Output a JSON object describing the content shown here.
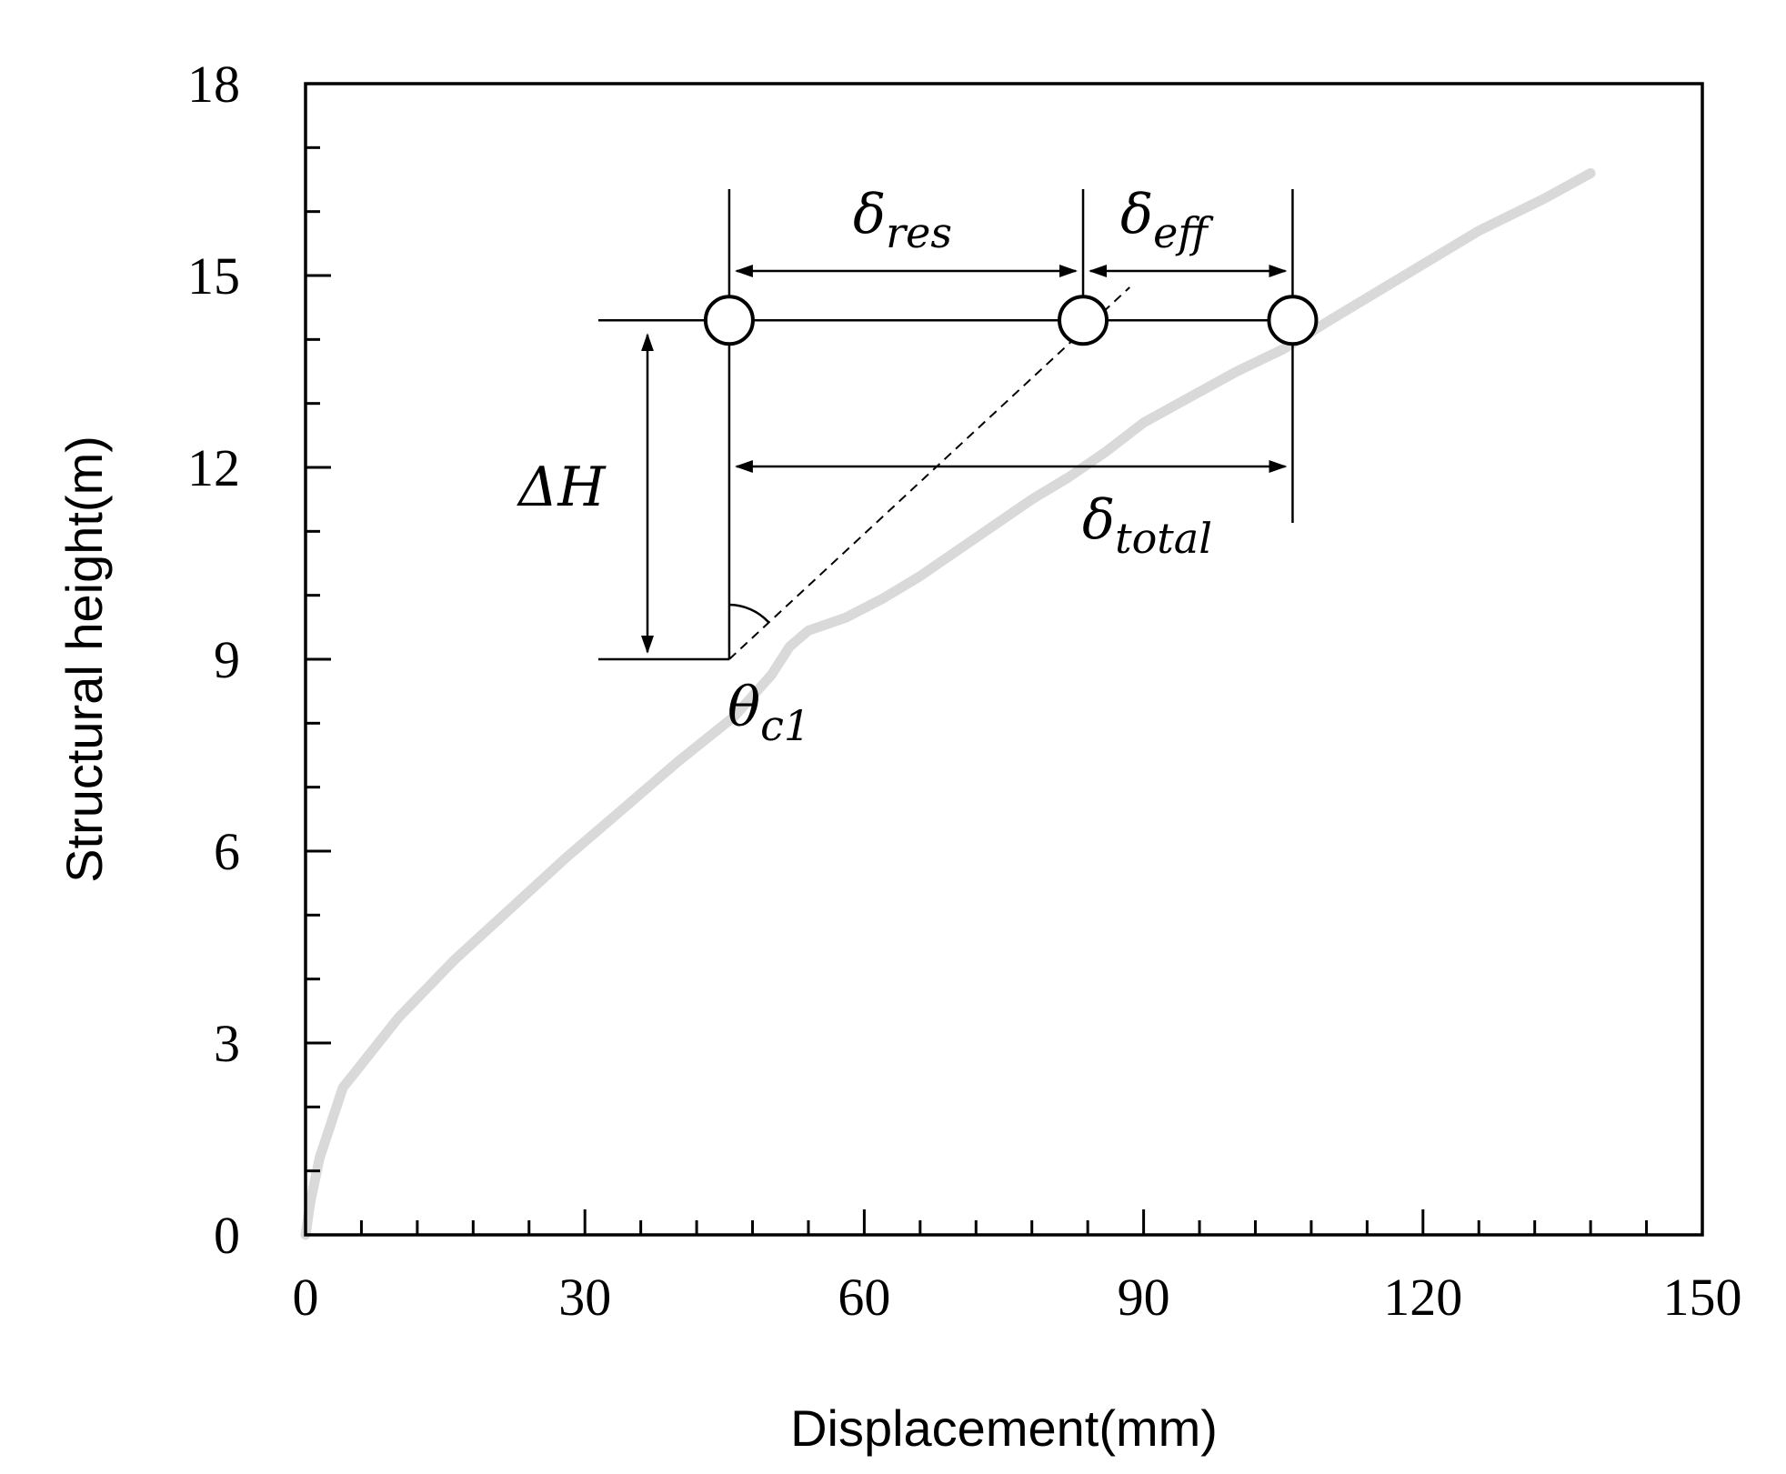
{
  "chart_data": {
    "type": "line",
    "title": "",
    "xlabel": "Displacement(mm)",
    "ylabel": "Structural height(m)",
    "xlim": [
      0,
      150
    ],
    "ylim": [
      0,
      18
    ],
    "xticks": [
      "0",
      "30",
      "60",
      "90",
      "120",
      "150"
    ],
    "yticks": [
      "0",
      "3",
      "6",
      "9",
      "12",
      "15",
      "18"
    ],
    "x_minor_step": 6,
    "y_minor_step": 1,
    "grid": false,
    "legend": "none",
    "series": [
      {
        "color": "#d9d9d9",
        "points": [
          [
            0,
            0
          ],
          [
            0.5,
            0.5
          ],
          [
            1.5,
            1.2
          ],
          [
            4,
            2.3
          ],
          [
            10,
            3.4
          ],
          [
            16,
            4.3
          ],
          [
            22,
            5.1
          ],
          [
            28,
            5.9
          ],
          [
            34,
            6.65
          ],
          [
            40,
            7.4
          ],
          [
            46,
            8.1
          ],
          [
            50,
            8.75
          ],
          [
            52,
            9.2
          ],
          [
            54,
            9.45
          ],
          [
            58,
            9.65
          ],
          [
            62,
            9.95
          ],
          [
            66,
            10.3
          ],
          [
            70,
            10.7
          ],
          [
            74,
            11.1
          ],
          [
            78,
            11.5
          ],
          [
            82,
            11.85
          ],
          [
            86,
            12.25
          ],
          [
            90,
            12.7
          ],
          [
            95,
            13.1
          ],
          [
            100,
            13.5
          ],
          [
            105,
            13.85
          ],
          [
            110,
            14.3
          ],
          [
            118,
            15.0
          ],
          [
            126,
            15.7
          ],
          [
            133,
            16.2
          ],
          [
            138,
            16.6
          ]
        ]
      }
    ],
    "markers": [
      {
        "name": "base",
        "x": 45.5,
        "y": 14.3
      },
      {
        "name": "res",
        "x": 83.5,
        "y": 14.3
      },
      {
        "name": "total",
        "x": 106,
        "y": 14.3
      }
    ],
    "annotations": {
      "delta_H": {
        "main": "ΔH",
        "sub": ""
      },
      "delta_res": {
        "main": "δ",
        "sub": "res"
      },
      "delta_eff": {
        "main": "δ",
        "sub": "eff"
      },
      "delta_total": {
        "main": "δ",
        "sub": "total"
      },
      "theta": {
        "main": "θ",
        "sub": "c1"
      }
    }
  }
}
